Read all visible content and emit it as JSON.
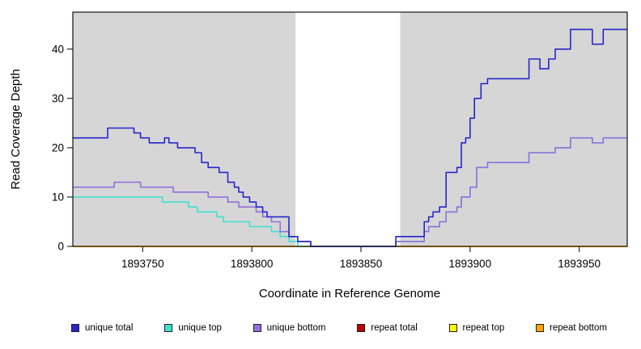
{
  "chart_data": {
    "type": "line",
    "subtype": "step",
    "title": "",
    "xlabel": "Coordinate in Reference Genome",
    "ylabel": "Read Coverage Depth",
    "xlim": [
      1893718,
      1893972
    ],
    "ylim": [
      0,
      47.5
    ],
    "x_ticks": [
      1893750,
      1893800,
      1893850,
      1893900,
      1893950
    ],
    "y_ticks": [
      0,
      10,
      20,
      30,
      40
    ],
    "grid": false,
    "plot_background": "#ffffff",
    "shaded_regions": [
      {
        "x0": 1893718,
        "x1": 1893820,
        "color": "#d6d6d6"
      },
      {
        "x0": 1893868,
        "x1": 1893972,
        "color": "#d6d6d6"
      }
    ],
    "series": [
      {
        "name": "repeat total",
        "color": "#bb0000",
        "points": [
          [
            1893718,
            0
          ],
          [
            1893972,
            0
          ]
        ]
      },
      {
        "name": "repeat top",
        "color": "#ffff00",
        "points": [
          [
            1893718,
            0
          ],
          [
            1893972,
            0
          ]
        ]
      },
      {
        "name": "repeat bottom",
        "color": "#ffa500",
        "points": [
          [
            1893718,
            0
          ],
          [
            1893972,
            0
          ]
        ]
      },
      {
        "name": "unique top",
        "color": "#40e0d0",
        "points": [
          [
            1893718,
            10
          ],
          [
            1893759,
            9
          ],
          [
            1893771,
            8
          ],
          [
            1893775,
            7
          ],
          [
            1893784,
            6
          ],
          [
            1893787,
            5
          ],
          [
            1893799,
            4
          ],
          [
            1893809,
            3
          ],
          [
            1893813,
            2
          ],
          [
            1893817,
            1
          ],
          [
            1893821,
            0
          ],
          [
            1893866,
            1
          ],
          [
            1893879,
            3
          ],
          [
            1893881,
            4
          ],
          [
            1893886,
            5
          ],
          [
            1893889,
            7
          ],
          [
            1893894,
            8
          ],
          [
            1893896,
            10
          ],
          [
            1893900,
            12
          ],
          [
            1893903,
            16
          ],
          [
            1893908,
            17
          ],
          [
            1893927,
            19
          ],
          [
            1893939,
            20
          ],
          [
            1893946,
            22
          ],
          [
            1893956,
            21
          ],
          [
            1893961,
            22
          ],
          [
            1893972,
            22
          ]
        ]
      },
      {
        "name": "unique bottom",
        "color": "#9370db",
        "points": [
          [
            1893718,
            12
          ],
          [
            1893737,
            13
          ],
          [
            1893749,
            12
          ],
          [
            1893764,
            11
          ],
          [
            1893780,
            10
          ],
          [
            1893789,
            9
          ],
          [
            1893794,
            8
          ],
          [
            1893802,
            7
          ],
          [
            1893805,
            6
          ],
          [
            1893809,
            5
          ],
          [
            1893813,
            3
          ],
          [
            1893817,
            2
          ],
          [
            1893821,
            1
          ],
          [
            1893827,
            0
          ],
          [
            1893866,
            1
          ],
          [
            1893879,
            3
          ],
          [
            1893881,
            4
          ],
          [
            1893886,
            5
          ],
          [
            1893889,
            7
          ],
          [
            1893894,
            8
          ],
          [
            1893896,
            10
          ],
          [
            1893900,
            12
          ],
          [
            1893903,
            16
          ],
          [
            1893908,
            17
          ],
          [
            1893927,
            19
          ],
          [
            1893939,
            20
          ],
          [
            1893946,
            22
          ],
          [
            1893956,
            21
          ],
          [
            1893961,
            22
          ],
          [
            1893972,
            22
          ]
        ]
      },
      {
        "name": "unique total",
        "color": "#2626cd",
        "points": [
          [
            1893718,
            22
          ],
          [
            1893734,
            24
          ],
          [
            1893746,
            23
          ],
          [
            1893749,
            22
          ],
          [
            1893753,
            21
          ],
          [
            1893760,
            22
          ],
          [
            1893762,
            21
          ],
          [
            1893766,
            20
          ],
          [
            1893774,
            19
          ],
          [
            1893777,
            17
          ],
          [
            1893780,
            16
          ],
          [
            1893785,
            15
          ],
          [
            1893789,
            13
          ],
          [
            1893792,
            12
          ],
          [
            1893794,
            11
          ],
          [
            1893796,
            10
          ],
          [
            1893799,
            9
          ],
          [
            1893802,
            8
          ],
          [
            1893805,
            7
          ],
          [
            1893807,
            6
          ],
          [
            1893817,
            2
          ],
          [
            1893821,
            1
          ],
          [
            1893827,
            0
          ],
          [
            1893866,
            2
          ],
          [
            1893879,
            5
          ],
          [
            1893881,
            6
          ],
          [
            1893883,
            7
          ],
          [
            1893886,
            8
          ],
          [
            1893889,
            15
          ],
          [
            1893894,
            16
          ],
          [
            1893896,
            21
          ],
          [
            1893898,
            22
          ],
          [
            1893900,
            26
          ],
          [
            1893902,
            30
          ],
          [
            1893905,
            33
          ],
          [
            1893908,
            34
          ],
          [
            1893927,
            38
          ],
          [
            1893932,
            36
          ],
          [
            1893936,
            38
          ],
          [
            1893939,
            40
          ],
          [
            1893946,
            44
          ],
          [
            1893956,
            41
          ],
          [
            1893961,
            44
          ],
          [
            1893972,
            44
          ]
        ]
      }
    ],
    "legend": [
      {
        "label": "unique total",
        "color": "#2626cd"
      },
      {
        "label": "unique top",
        "color": "#40e0d0"
      },
      {
        "label": "unique bottom",
        "color": "#9370db"
      },
      {
        "label": "repeat total",
        "color": "#bb0000"
      },
      {
        "label": "repeat top",
        "color": "#ffff00"
      },
      {
        "label": "repeat bottom",
        "color": "#ffa500"
      }
    ],
    "legend_position": "bottom"
  }
}
